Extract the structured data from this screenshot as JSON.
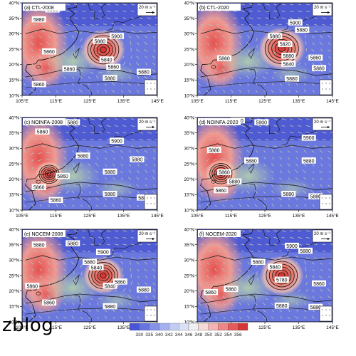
{
  "panels": [
    {
      "id": "a",
      "title": "(a) CTL-2008",
      "col": 0,
      "row": 0,
      "typhoon": {
        "lon": 129,
        "lat": 24.8,
        "r": 14,
        "center_label": "5820"
      },
      "labels": [
        {
          "t": "5880",
          "lon": 114,
          "lat": 37.8
        },
        {
          "t": "5880",
          "lon": 110,
          "lat": 34.6
        },
        {
          "t": "5900",
          "lon": 133,
          "lat": 29.2
        },
        {
          "t": "5880",
          "lon": 128,
          "lat": 27.6
        },
        {
          "t": "5860",
          "lon": 113,
          "lat": 24.2
        },
        {
          "t": "5840",
          "lon": 130,
          "lat": 21.6
        },
        {
          "t": "5860",
          "lon": 119,
          "lat": 18.6
        },
        {
          "t": "5860",
          "lon": 132,
          "lat": 19.2
        },
        {
          "t": "5880",
          "lon": 141,
          "lat": 17.6
        },
        {
          "t": "5880",
          "lon": 131,
          "lat": 15.6
        },
        {
          "t": "5860",
          "lon": 110,
          "lat": 13.6
        }
      ]
    },
    {
      "id": "b",
      "title": "(b) CTL-2020",
      "col": 1,
      "row": 0,
      "typhoon": {
        "lon": 130,
        "lat": 25.2,
        "r": 15,
        "center_label": "5820"
      },
      "labels": [
        {
          "t": "5900",
          "lon": 134,
          "lat": 33.6
        },
        {
          "t": "5880",
          "lon": 136,
          "lat": 31.2
        },
        {
          "t": "5880",
          "lon": 128,
          "lat": 29.2
        },
        {
          "t": "5820",
          "lon": 131,
          "lat": 26.6
        },
        {
          "t": "5880",
          "lon": 132,
          "lat": 22.8
        },
        {
          "t": "5860",
          "lon": 113,
          "lat": 22.0
        },
        {
          "t": "5840",
          "lon": 132,
          "lat": 20.2
        },
        {
          "t": "5860",
          "lon": 140,
          "lat": 22.2
        },
        {
          "t": "5880",
          "lon": 141,
          "lat": 18.8
        },
        {
          "t": "5880",
          "lon": 133,
          "lat": 15.4
        }
      ]
    },
    {
      "id": "c",
      "title": "(c) NOINFA-2008",
      "col": 0,
      "row": 1,
      "typhoon": {
        "lon": 113,
        "lat": 21.6,
        "r": 9,
        "center_label": ""
      },
      "labels": [
        {
          "t": "5880",
          "lon": 120,
          "lat": 38.4
        },
        {
          "t": "5860",
          "lon": 111,
          "lat": 35.4
        },
        {
          "t": "5900",
          "lon": 133,
          "lat": 32.4
        },
        {
          "t": "5880",
          "lon": 123,
          "lat": 27.6
        },
        {
          "t": "5880",
          "lon": 139,
          "lat": 26.4
        },
        {
          "t": "5860",
          "lon": 117,
          "lat": 21.0
        },
        {
          "t": "5880",
          "lon": 131,
          "lat": 22.4
        },
        {
          "t": "5860",
          "lon": 110,
          "lat": 17.4
        },
        {
          "t": "5880",
          "lon": 131,
          "lat": 15.2
        },
        {
          "t": "5880",
          "lon": 141,
          "lat": 14.0
        },
        {
          "t": "5860",
          "lon": 115,
          "lat": 13.2
        }
      ]
    },
    {
      "id": "d",
      "title": "(d) NOINFA-2020",
      "col": 1,
      "row": 1,
      "typhoon": {
        "lon": 112,
        "lat": 21.8,
        "r": 10,
        "center_label": ""
      },
      "labels": [
        {
          "t": "5900",
          "lon": 124,
          "lat": 38.4
        },
        {
          "t": "5880",
          "lon": 117,
          "lat": 39.0
        },
        {
          "t": "5900",
          "lon": 138,
          "lat": 33.4
        },
        {
          "t": "5880",
          "lon": 110,
          "lat": 29.4
        },
        {
          "t": "5880",
          "lon": 121,
          "lat": 26.0
        },
        {
          "t": "5880",
          "lon": 138,
          "lat": 26.0
        },
        {
          "t": "5860",
          "lon": 113,
          "lat": 22.2
        },
        {
          "t": "5880",
          "lon": 116,
          "lat": 19.2
        },
        {
          "t": "5860",
          "lon": 112,
          "lat": 16.4
        },
        {
          "t": "5880",
          "lon": 132,
          "lat": 15.2
        },
        {
          "t": "5880",
          "lon": 140,
          "lat": 14.4
        }
      ]
    },
    {
      "id": "e",
      "title": "(e) NOCEM-2008",
      "col": 0,
      "row": 2,
      "typhoon": {
        "lon": 129,
        "lat": 25.0,
        "r": 13,
        "center_label": "5820"
      },
      "labels": [
        {
          "t": "5880",
          "lon": 110,
          "lat": 35.0
        },
        {
          "t": "5880",
          "lon": 120,
          "lat": 35.4
        },
        {
          "t": "5900",
          "lon": 129,
          "lat": 32.6
        },
        {
          "t": "5880",
          "lon": 125,
          "lat": 29.4
        },
        {
          "t": "5840",
          "lon": 127,
          "lat": 27.6
        },
        {
          "t": "5840",
          "lon": 131,
          "lat": 21.6
        },
        {
          "t": "5860",
          "lon": 108,
          "lat": 21.6
        },
        {
          "t": "5860",
          "lon": 134,
          "lat": 23.0
        },
        {
          "t": "5860",
          "lon": 113,
          "lat": 16.2
        },
        {
          "t": "5880",
          "lon": 141,
          "lat": 20.4
        },
        {
          "t": "5880",
          "lon": 131,
          "lat": 15.0
        }
      ]
    },
    {
      "id": "f",
      "title": "(f) NOCEM-2020",
      "col": 1,
      "row": 2,
      "typhoon": {
        "lon": 130,
        "lat": 25.0,
        "r": 14,
        "center_label": "5780"
      },
      "labels": [
        {
          "t": "5900",
          "lon": 133,
          "lat": 34.6
        },
        {
          "t": "5880",
          "lon": 137,
          "lat": 33.0
        },
        {
          "t": "5880",
          "lon": 123,
          "lat": 29.4
        },
        {
          "t": "5840",
          "lon": 128,
          "lat": 27.8
        },
        {
          "t": "5780",
          "lon": 130,
          "lat": 23.6
        },
        {
          "t": "5860",
          "lon": 141,
          "lat": 22.4
        },
        {
          "t": "5860",
          "lon": 115,
          "lat": 20.6
        },
        {
          "t": "5860",
          "lon": 109,
          "lat": 19.6
        },
        {
          "t": "5880",
          "lon": 130,
          "lat": 15.2
        },
        {
          "t": "5880",
          "lon": 140,
          "lat": 14.8
        }
      ]
    }
  ],
  "axes": {
    "lon": {
      "min": 105,
      "max": 145,
      "ticks": [
        105,
        115,
        125,
        135,
        145
      ],
      "tick_labels": [
        "105°E",
        "115°E",
        "125°E",
        "135°E",
        "145°E"
      ]
    },
    "lat": {
      "min": 10,
      "max": 40,
      "ticks": [
        10,
        15,
        20,
        25,
        30,
        35,
        40
      ],
      "tick_labels": [
        "10°N",
        "15°N",
        "20°N",
        "25°N",
        "30°N",
        "35°N",
        "40°N"
      ]
    }
  },
  "reference_vector": "20 m s⁻¹",
  "colorbar": {
    "ticks": [
      "330",
      "335",
      "340",
      "342",
      "344",
      "346",
      "348",
      "350",
      "352",
      "354",
      "356"
    ],
    "colors": [
      "#4b54d6",
      "#6673e0",
      "#8592e8",
      "#a4b0ef",
      "#c3cbf2",
      "#dbe1f5",
      "#f0f0f0",
      "#f7d8d8",
      "#f4b2b2",
      "#ef8585",
      "#e65a5a",
      "#d63636"
    ]
  },
  "watermark": "zblog"
}
